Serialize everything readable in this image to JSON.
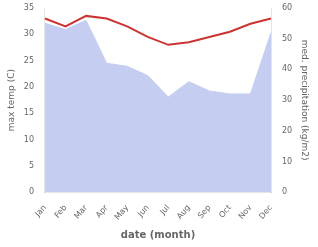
{
  "chart_data": {
    "type": "line",
    "categories": [
      "Jan",
      "Feb",
      "Mar",
      "Apr",
      "May",
      "Jun",
      "Jul",
      "Aug",
      "Sep",
      "Oct",
      "Nov",
      "Dec"
    ],
    "series": [
      {
        "type": "area",
        "color": "#c5cef0",
        "axis": "y2",
        "values": [
          55.0,
          53.0,
          56.0,
          42.0,
          41.0,
          38.0,
          31.0,
          36.0,
          33.0,
          32.0,
          32.0,
          52.0
        ]
      },
      {
        "type": "line",
        "color": "#cc3333",
        "values": [
          33.0,
          31.5,
          33.5,
          33.0,
          31.5,
          29.5,
          28.0,
          28.5,
          29.5,
          30.5,
          32.0,
          33.0
        ]
      }
    ],
    "xlabel": "date (month)",
    "ylabel": "max temp (C)",
    "y2label": "med. precipitation (kg/m2)",
    "ylim": [
      0,
      35
    ],
    "yticks": [
      0,
      5,
      10,
      15,
      20,
      25,
      30,
      35
    ],
    "y2lim": [
      0,
      60
    ],
    "y2ticks": [
      0,
      10,
      20,
      30,
      40,
      50,
      60
    ],
    "grid": false
  }
}
